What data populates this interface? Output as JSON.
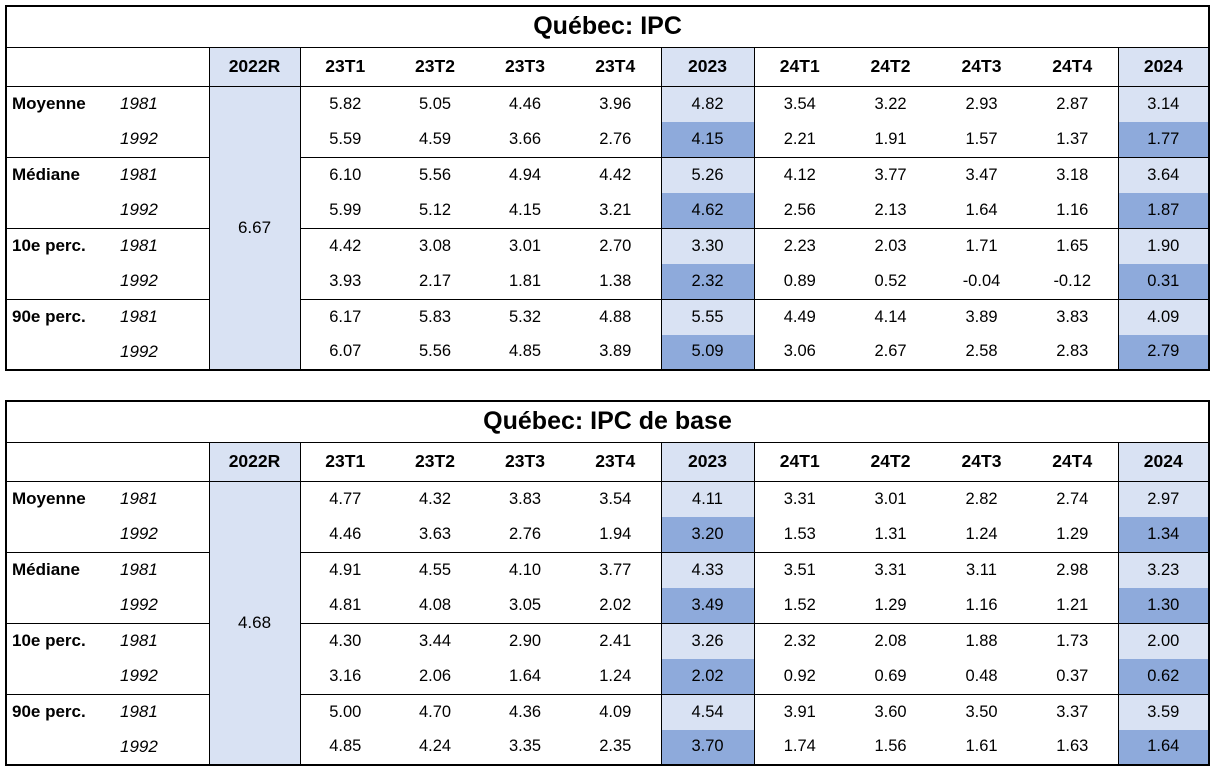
{
  "colors": {
    "light_blue": "#D9E2F3",
    "medium_blue": "#8EAADB",
    "border_black": "#000000",
    "text_black": "#000000"
  },
  "tables": [
    {
      "title": "Québec: IPC",
      "r2022_header": "2022R",
      "r2022_value": "6.67",
      "columns": [
        "23T1",
        "23T2",
        "23T3",
        "23T4",
        "2023",
        "24T1",
        "24T2",
        "24T3",
        "24T4",
        "2024"
      ],
      "row_groups": [
        {
          "label": "Moyenne",
          "rows": [
            {
              "year": "1981",
              "values": [
                "5.82",
                "5.05",
                "4.46",
                "3.96",
                "4.82",
                "3.54",
                "3.22",
                "2.93",
                "2.87",
                "3.14"
              ]
            },
            {
              "year": "1992",
              "values": [
                "5.59",
                "4.59",
                "3.66",
                "2.76",
                "4.15",
                "2.21",
                "1.91",
                "1.57",
                "1.37",
                "1.77"
              ]
            }
          ]
        },
        {
          "label": "Médiane",
          "rows": [
            {
              "year": "1981",
              "values": [
                "6.10",
                "5.56",
                "4.94",
                "4.42",
                "5.26",
                "4.12",
                "3.77",
                "3.47",
                "3.18",
                "3.64"
              ]
            },
            {
              "year": "1992",
              "values": [
                "5.99",
                "5.12",
                "4.15",
                "3.21",
                "4.62",
                "2.56",
                "2.13",
                "1.64",
                "1.16",
                "1.87"
              ]
            }
          ]
        },
        {
          "label": "10e perc.",
          "rows": [
            {
              "year": "1981",
              "values": [
                "4.42",
                "3.08",
                "3.01",
                "2.70",
                "3.30",
                "2.23",
                "2.03",
                "1.71",
                "1.65",
                "1.90"
              ]
            },
            {
              "year": "1992",
              "values": [
                "3.93",
                "2.17",
                "1.81",
                "1.38",
                "2.32",
                "0.89",
                "0.52",
                "-0.04",
                "-0.12",
                "0.31"
              ]
            }
          ]
        },
        {
          "label": "90e perc.",
          "rows": [
            {
              "year": "1981",
              "values": [
                "6.17",
                "5.83",
                "5.32",
                "4.88",
                "5.55",
                "4.49",
                "4.14",
                "3.89",
                "3.83",
                "4.09"
              ]
            },
            {
              "year": "1992",
              "values": [
                "6.07",
                "5.56",
                "4.85",
                "3.89",
                "5.09",
                "3.06",
                "2.67",
                "2.58",
                "2.83",
                "2.79"
              ]
            }
          ]
        }
      ]
    },
    {
      "title": "Québec: IPC de base",
      "r2022_header": "2022R",
      "r2022_value": "4.68",
      "columns": [
        "23T1",
        "23T2",
        "23T3",
        "23T4",
        "2023",
        "24T1",
        "24T2",
        "24T3",
        "24T4",
        "2024"
      ],
      "row_groups": [
        {
          "label": "Moyenne",
          "rows": [
            {
              "year": "1981",
              "values": [
                "4.77",
                "4.32",
                "3.83",
                "3.54",
                "4.11",
                "3.31",
                "3.01",
                "2.82",
                "2.74",
                "2.97"
              ]
            },
            {
              "year": "1992",
              "values": [
                "4.46",
                "3.63",
                "2.76",
                "1.94",
                "3.20",
                "1.53",
                "1.31",
                "1.24",
                "1.29",
                "1.34"
              ]
            }
          ]
        },
        {
          "label": "Médiane",
          "rows": [
            {
              "year": "1981",
              "values": [
                "4.91",
                "4.55",
                "4.10",
                "3.77",
                "4.33",
                "3.51",
                "3.31",
                "3.11",
                "2.98",
                "3.23"
              ]
            },
            {
              "year": "1992",
              "values": [
                "4.81",
                "4.08",
                "3.05",
                "2.02",
                "3.49",
                "1.52",
                "1.29",
                "1.16",
                "1.21",
                "1.30"
              ]
            }
          ]
        },
        {
          "label": "10e perc.",
          "rows": [
            {
              "year": "1981",
              "values": [
                "4.30",
                "3.44",
                "2.90",
                "2.41",
                "3.26",
                "2.32",
                "2.08",
                "1.88",
                "1.73",
                "2.00"
              ]
            },
            {
              "year": "1992",
              "values": [
                "3.16",
                "2.06",
                "1.64",
                "1.24",
                "2.02",
                "0.92",
                "0.69",
                "0.48",
                "0.37",
                "0.62"
              ]
            }
          ]
        },
        {
          "label": "90e perc.",
          "rows": [
            {
              "year": "1981",
              "values": [
                "5.00",
                "4.70",
                "4.36",
                "4.09",
                "4.54",
                "3.91",
                "3.60",
                "3.50",
                "3.37",
                "3.59"
              ]
            },
            {
              "year": "1992",
              "values": [
                "4.85",
                "4.24",
                "3.35",
                "2.35",
                "3.70",
                "1.74",
                "1.56",
                "1.61",
                "1.63",
                "1.64"
              ]
            }
          ]
        }
      ]
    }
  ]
}
